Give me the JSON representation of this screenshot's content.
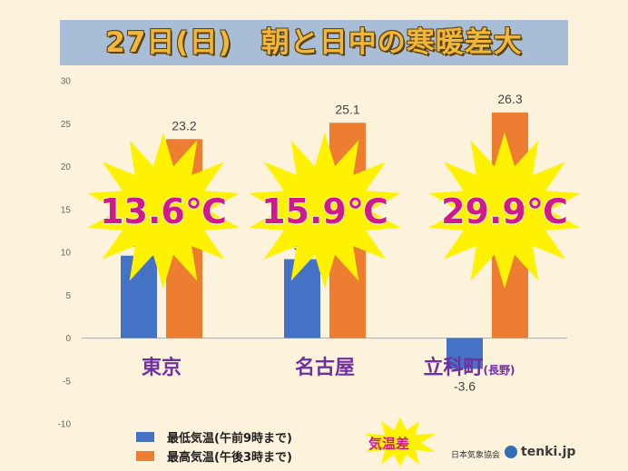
{
  "chart_data": {
    "type": "bar",
    "title": "27日(日)　朝と日中の寒暖差大",
    "categories": [
      "東京",
      "名古屋",
      "立科町"
    ],
    "category_notes": [
      "",
      "",
      "(長野)"
    ],
    "series": [
      {
        "name": "最低気温(午前9時まで)",
        "color": "#4472c4",
        "values": [
          9.6,
          9.2,
          -3.6
        ]
      },
      {
        "name": "最高気温(午後3時まで)",
        "color": "#ed7d31",
        "values": [
          23.2,
          25.1,
          26.3
        ]
      }
    ],
    "ylim": [
      -10,
      30
    ],
    "yticks": [
      -10,
      -5,
      0,
      5,
      10,
      15,
      20,
      25,
      30
    ],
    "grid": false,
    "legend_position": "bottom-left",
    "differences": [
      "13.6℃",
      "15.9℃",
      "29.9℃"
    ],
    "difference_label": "気温差",
    "colors": {
      "category_label": "#7030a0",
      "difference_text": "#d0198d",
      "burst": "#fff200"
    }
  },
  "credits": {
    "jma": "日本気象協会",
    "tenki": "tenki.jp"
  }
}
